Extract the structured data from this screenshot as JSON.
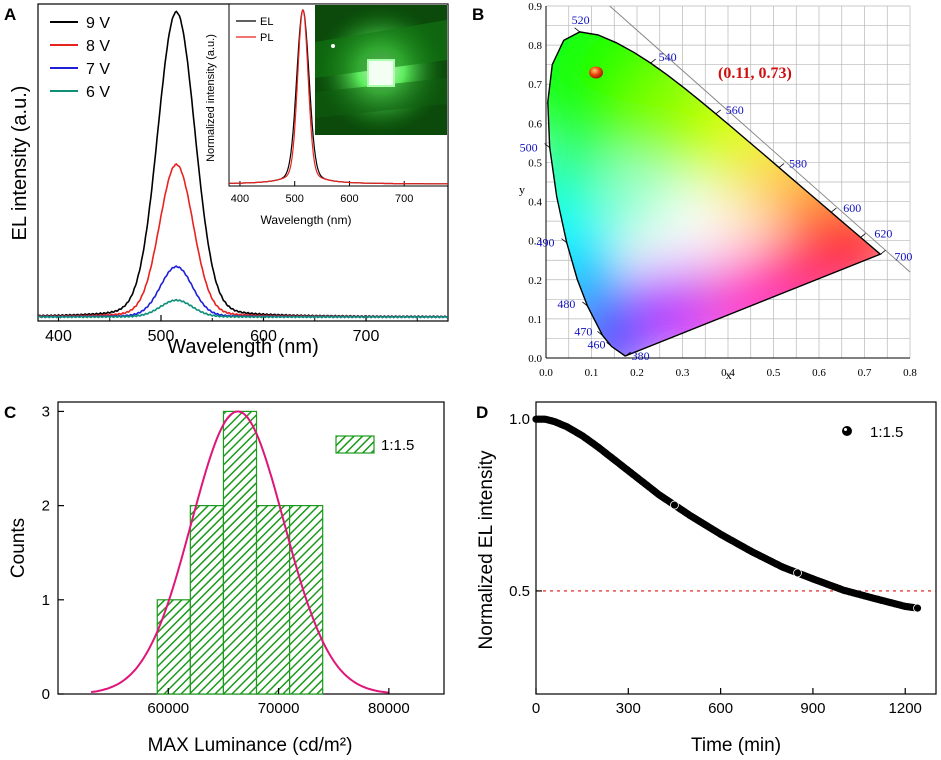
{
  "colors": {
    "v9": "#000000",
    "v8": "#e8231f",
    "v7": "#1f1fd9",
    "v6": "#0f8f7a",
    "pl": "#e8231f",
    "cie_point": "#e03010",
    "cie_label": "#d01010",
    "wl_label": "#1010c0",
    "hist_fill": "#1b9a1b",
    "fit": "#e0157a",
    "dash": "#e01010",
    "grid": "#b8b8b8"
  },
  "chart_data": [
    {
      "panel": "A",
      "type": "line",
      "title": "",
      "xlabel": "Wavelength (nm)",
      "ylabel": "EL intensity (a.u.)",
      "xlim": [
        380,
        780
      ],
      "ylim": [
        0,
        1.05
      ],
      "xticks": [
        400,
        500,
        600,
        700
      ],
      "peak_nm": 515,
      "series": [
        {
          "name": "9 V",
          "peak": 1.0,
          "fwhm": 42
        },
        {
          "name": "8 V",
          "peak": 0.5,
          "fwhm": 38
        },
        {
          "name": "7 V",
          "peak": 0.165,
          "fwhm": 36
        },
        {
          "name": "6 V",
          "peak": 0.055,
          "fwhm": 36
        }
      ],
      "inset": {
        "ylabel": "Normalized intensity (a.u.)",
        "xlabel": "Wavelength (nm)",
        "xticks": [
          400,
          500,
          600,
          700
        ],
        "xlim": [
          380,
          780
        ],
        "series": [
          {
            "name": "EL",
            "peak": 1.0,
            "fwhm": 26
          },
          {
            "name": "PL",
            "peak": 1.0,
            "fwhm": 22
          }
        ]
      }
    },
    {
      "panel": "B",
      "type": "scatter",
      "xlabel": "x",
      "ylabel": "y",
      "xlim": [
        0.0,
        0.8
      ],
      "ylim": [
        0.0,
        0.9
      ],
      "xticks": [
        "0.0",
        "0.1",
        "0.2",
        "0.3",
        "0.4",
        "0.5",
        "0.6",
        "0.7",
        "0.8"
      ],
      "yticks": [
        "0.0",
        "0.1",
        "0.2",
        "0.3",
        "0.4",
        "0.5",
        "0.6",
        "0.7",
        "0.8",
        "0.9"
      ],
      "point": {
        "x": 0.11,
        "y": 0.73,
        "label": "(0.11, 0.73)"
      },
      "wavelength_labels": [
        {
          "nm": "380",
          "x": 0.175,
          "y": 0.005
        },
        {
          "nm": "460",
          "x": 0.144,
          "y": 0.03
        },
        {
          "nm": "470",
          "x": 0.124,
          "y": 0.058
        },
        {
          "nm": "480",
          "x": 0.091,
          "y": 0.133
        },
        {
          "nm": "490",
          "x": 0.045,
          "y": 0.295
        },
        {
          "nm": "500",
          "x": 0.008,
          "y": 0.538
        },
        {
          "nm": "520",
          "x": 0.074,
          "y": 0.834
        },
        {
          "nm": "540",
          "x": 0.23,
          "y": 0.754
        },
        {
          "nm": "560",
          "x": 0.373,
          "y": 0.624
        },
        {
          "nm": "580",
          "x": 0.512,
          "y": 0.487
        },
        {
          "nm": "600",
          "x": 0.627,
          "y": 0.373
        },
        {
          "nm": "620",
          "x": 0.691,
          "y": 0.308
        },
        {
          "nm": "700",
          "x": 0.735,
          "y": 0.265
        }
      ]
    },
    {
      "panel": "C",
      "type": "bar",
      "xlabel": "MAX Luminance (cd/m²)",
      "ylabel": "Counts",
      "xlim": [
        50000,
        85000
      ],
      "ylim": [
        0,
        3.1
      ],
      "xticks": [
        "60000",
        "70000",
        "80000"
      ],
      "yticks": [
        "0",
        "1",
        "2",
        "3"
      ],
      "legend": "1:1.5",
      "bins": [
        {
          "from": 59000,
          "to": 62000,
          "count": 1
        },
        {
          "from": 62000,
          "to": 65000,
          "count": 2
        },
        {
          "from": 65000,
          "to": 68000,
          "count": 3
        },
        {
          "from": 68000,
          "to": 71000,
          "count": 2
        },
        {
          "from": 71000,
          "to": 74000,
          "count": 2
        }
      ],
      "fit": {
        "mean": 66300,
        "sigma": 4200,
        "amplitude": 3.0,
        "from": 53000,
        "to": 80000
      }
    },
    {
      "panel": "D",
      "type": "scatter",
      "xlabel": "Time (min)",
      "ylabel": "Normalized EL intensity",
      "xlim": [
        0,
        1300
      ],
      "ylim": [
        0.2,
        1.05
      ],
      "xticks": [
        "0",
        "300",
        "600",
        "900",
        "1200"
      ],
      "yticks": [
        "0.5",
        "1.0"
      ],
      "legend": "1:1.5",
      "reference_line": 0.5,
      "points": [
        [
          0,
          1.0
        ],
        [
          30,
          1.0
        ],
        [
          60,
          0.993
        ],
        [
          100,
          0.978
        ],
        [
          150,
          0.952
        ],
        [
          200,
          0.92
        ],
        [
          300,
          0.85
        ],
        [
          400,
          0.78
        ],
        [
          500,
          0.72
        ],
        [
          600,
          0.665
        ],
        [
          700,
          0.615
        ],
        [
          800,
          0.57
        ],
        [
          900,
          0.535
        ],
        [
          1000,
          0.502
        ],
        [
          1100,
          0.478
        ],
        [
          1200,
          0.455
        ],
        [
          1240,
          0.45
        ]
      ]
    }
  ],
  "panels": {
    "a": "A",
    "b": "B",
    "c": "C",
    "d": "D"
  }
}
